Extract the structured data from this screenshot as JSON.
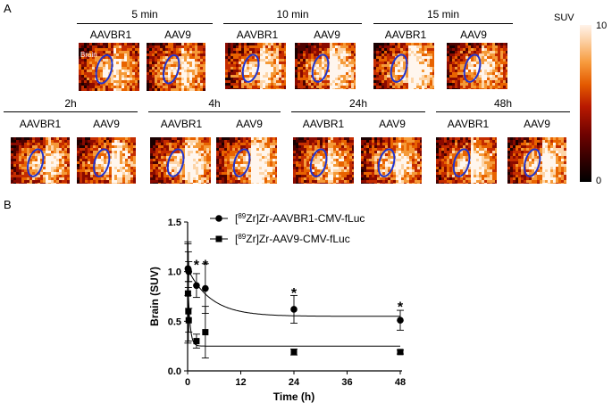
{
  "panel_a": {
    "letter": "A",
    "vector_labels": [
      "AAVBR1",
      "AAV9"
    ],
    "brain_label": "Brain",
    "timepoints_row1": [
      "5 min",
      "10 min",
      "15 min"
    ],
    "timepoints_row2": [
      "2h",
      "4h",
      "24h",
      "48h"
    ],
    "colorbar": {
      "title": "SUV",
      "max_label": "10",
      "min_label": "0"
    }
  },
  "panel_b": {
    "letter": "B"
  },
  "chart_data": {
    "type": "scatter",
    "xlabel": "Time (h)",
    "ylabel": "Brain (SUV)",
    "xlim": [
      0,
      48
    ],
    "ylim": [
      0,
      1.5
    ],
    "xticks": [
      "0",
      "12",
      "24",
      "36",
      "48"
    ],
    "yticks": [
      "0.0",
      "0.5",
      "1.0",
      "1.5"
    ],
    "legend_position": "top-right",
    "legend": [
      {
        "sup": "89",
        "pre": "[",
        "post": "Zr]Zr-AAVBR1-CMV-fLuc"
      },
      {
        "sup": "89",
        "pre": "[",
        "post": "Zr]Zr-AAV9-CMV-fLuc"
      }
    ],
    "series": [
      {
        "name": "[89Zr]Zr-AAVBR1-CMV-fLuc",
        "marker": "circle",
        "x": [
          0.08,
          0.17,
          0.25,
          2,
          4,
          24,
          48
        ],
        "y": [
          1.03,
          1.02,
          1.0,
          0.86,
          0.83,
          0.62,
          0.51
        ],
        "err": [
          0.27,
          0.18,
          0.1,
          0.12,
          0.25,
          0.14,
          0.1
        ],
        "fit": {
          "plateau": 0.55,
          "span": 0.48,
          "k": 0.19
        }
      },
      {
        "name": "[89Zr]Zr-AAV9-CMV-fLuc",
        "marker": "square",
        "x": [
          0.08,
          0.17,
          0.25,
          2,
          4,
          24,
          48
        ],
        "y": [
          0.78,
          0.6,
          0.51,
          0.3,
          0.39,
          0.19,
          0.19
        ],
        "err": [
          0.5,
          0.3,
          0.12,
          0.07,
          0.26,
          0.03,
          0.02
        ],
        "fit": {
          "plateau": 0.25,
          "span": 0.75,
          "k": 2.2
        }
      }
    ],
    "significance": [
      {
        "label": "*",
        "x": 2,
        "y": 1.09
      },
      {
        "label": "*",
        "x": 4,
        "y": 1.09
      },
      {
        "label": "*",
        "x": 24,
        "y": 0.81
      },
      {
        "label": "*",
        "x": 48,
        "y": 0.67
      }
    ]
  }
}
